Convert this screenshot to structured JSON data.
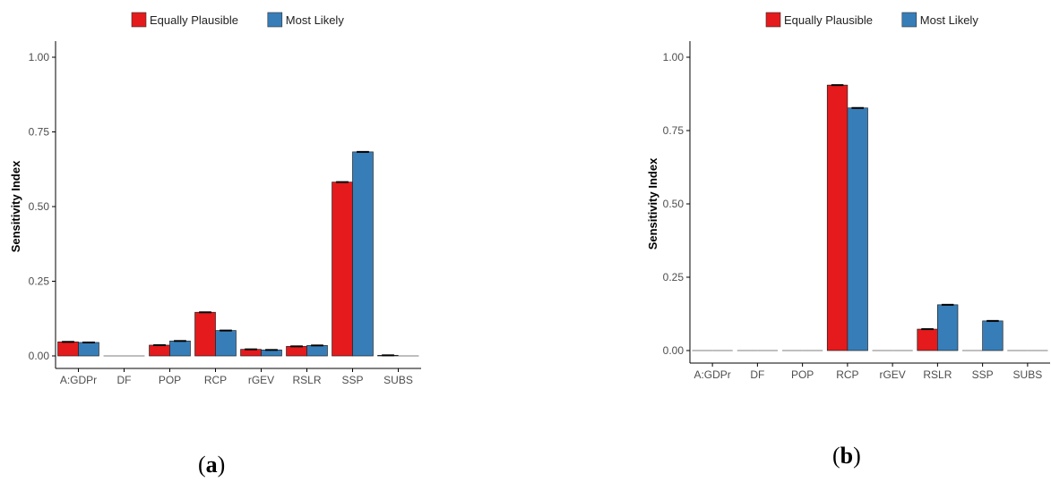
{
  "figure": {
    "panels": [
      {
        "label": "a"
      },
      {
        "label": "b"
      }
    ]
  },
  "colors": {
    "equally_plausible": "#e41a1c",
    "most_likely": "#377eb8",
    "axis": "#000000",
    "tick_text": "#4d4d4d"
  },
  "chart_data": [
    {
      "type": "bar",
      "title": "",
      "xlabel": "",
      "ylabel": "Sensitivity Index",
      "ylim": [
        0,
        1
      ],
      "yticks": [
        "0.00",
        "0.25",
        "0.50",
        "0.75",
        "1.00"
      ],
      "ytick_values": [
        0,
        0.25,
        0.5,
        0.75,
        1.0
      ],
      "grid": false,
      "legend_position": "top",
      "categories": [
        "A:GDPr",
        "DF",
        "POP",
        "RCP",
        "rGEV",
        "RSLR",
        "SSP",
        "SUBS"
      ],
      "series": [
        {
          "name": "Equally Plausible",
          "values": [
            0.047,
            0.0,
            0.036,
            0.146,
            0.022,
            0.032,
            0.582,
            0.002
          ]
        },
        {
          "name": "Most Likely",
          "values": [
            0.045,
            0.0,
            0.05,
            0.085,
            0.02,
            0.035,
            0.683,
            0.0
          ]
        }
      ]
    },
    {
      "type": "bar",
      "title": "",
      "xlabel": "",
      "ylabel": "Sensitivity Index",
      "ylim": [
        0,
        1
      ],
      "yticks": [
        "0.00",
        "0.25",
        "0.50",
        "0.75",
        "1.00"
      ],
      "ytick_values": [
        0,
        0.25,
        0.5,
        0.75,
        1.0
      ],
      "grid": false,
      "legend_position": "top",
      "categories": [
        "A:GDPr",
        "DF",
        "POP",
        "RCP",
        "rGEV",
        "RSLR",
        "SSP",
        "SUBS"
      ],
      "series": [
        {
          "name": "Equally Plausible",
          "values": [
            0.0,
            0.0,
            0.0,
            0.905,
            0.0,
            0.073,
            0.0,
            0.0
          ]
        },
        {
          "name": "Most Likely",
          "values": [
            0.0,
            0.0,
            0.001,
            0.827,
            0.0,
            0.156,
            0.101,
            0.0
          ]
        }
      ]
    }
  ]
}
